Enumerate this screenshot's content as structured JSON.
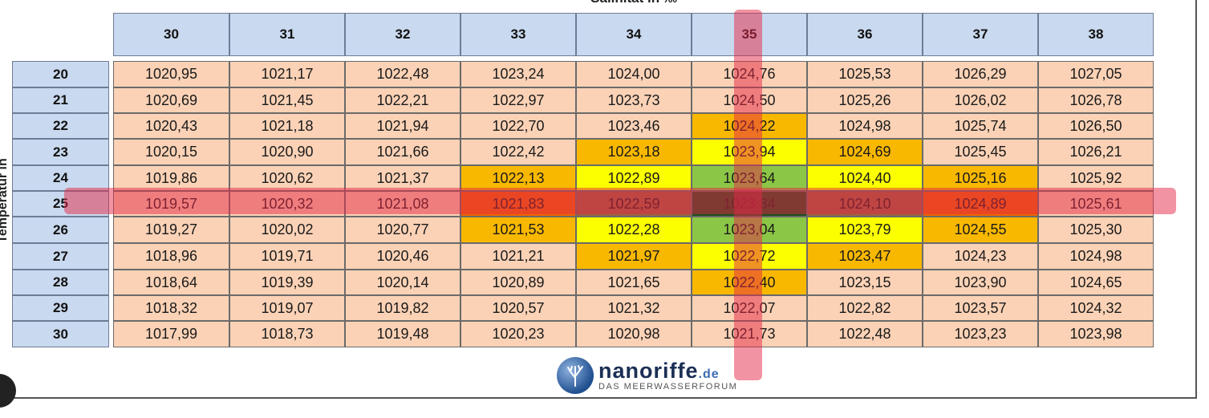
{
  "table": {
    "title": "Salinität in ‰",
    "y_label": "Temperatur in °C",
    "columns": [
      "30",
      "31",
      "32",
      "33",
      "34",
      "35",
      "36",
      "37",
      "38"
    ],
    "rows": [
      {
        "label": "20",
        "values": [
          "1020,95",
          "1021,17",
          "1022,48",
          "1023,24",
          "1024,00",
          "1024,76",
          "1025,53",
          "1026,29",
          "1027,05"
        ]
      },
      {
        "label": "21",
        "values": [
          "1020,69",
          "1021,45",
          "1022,21",
          "1022,97",
          "1023,73",
          "1024,50",
          "1025,26",
          "1026,02",
          "1026,78"
        ]
      },
      {
        "label": "22",
        "values": [
          "1020,43",
          "1021,18",
          "1021,94",
          "1022,70",
          "1023,46",
          "1024,22",
          "1024,98",
          "1025,74",
          "1026,50"
        ]
      },
      {
        "label": "23",
        "values": [
          "1020,15",
          "1020,90",
          "1021,66",
          "1022,42",
          "1023,18",
          "1023,94",
          "1024,69",
          "1025,45",
          "1026,21"
        ]
      },
      {
        "label": "24",
        "values": [
          "1019,86",
          "1020,62",
          "1021,37",
          "1022,13",
          "1022,89",
          "1023,64",
          "1024,40",
          "1025,16",
          "1025,92"
        ]
      },
      {
        "label": "25",
        "values": [
          "1019,57",
          "1020,32",
          "1021,08",
          "1021,83",
          "1022,59",
          "1023,34",
          "1024,10",
          "1024,89",
          "1025,61"
        ]
      },
      {
        "label": "26",
        "values": [
          "1019,27",
          "1020,02",
          "1020,77",
          "1021,53",
          "1022,28",
          "1023,04",
          "1023,79",
          "1024,55",
          "1025,30"
        ]
      },
      {
        "label": "27",
        "values": [
          "1018,96",
          "1019,71",
          "1020,46",
          "1021,21",
          "1021,97",
          "1022,72",
          "1023,47",
          "1024,23",
          "1024,98"
        ]
      },
      {
        "label": "28",
        "values": [
          "1018,64",
          "1019,39",
          "1020,14",
          "1020,89",
          "1021,65",
          "1022,40",
          "1023,15",
          "1023,90",
          "1024,65"
        ]
      },
      {
        "label": "29",
        "values": [
          "1018,32",
          "1019,07",
          "1019,82",
          "1020,57",
          "1021,32",
          "1022,07",
          "1022,82",
          "1023,57",
          "1024,32"
        ]
      },
      {
        "label": "30",
        "values": [
          "1017,99",
          "1018,73",
          "1019,48",
          "1020,23",
          "1020,98",
          "1021,73",
          "1022,48",
          "1023,23",
          "1023,98"
        ]
      }
    ],
    "colors": {
      "header_bg": "#c9d9ef",
      "cell_default": "#fbd2b6",
      "orange": "#f9b800",
      "yellow": "#fbff00",
      "light_green": "#8cc646",
      "dark_green": "#1e4d1e",
      "dark_orange": "#f06400",
      "brown": "#9b6340",
      "highlight_band": "#e42846"
    },
    "cell_colors": [
      [
        "",
        "",
        "",
        "",
        "",
        "",
        "",
        "",
        ""
      ],
      [
        "",
        "",
        "",
        "",
        "",
        "",
        "",
        "",
        ""
      ],
      [
        "",
        "",
        "",
        "",
        "",
        "orange",
        "",
        "",
        ""
      ],
      [
        "",
        "",
        "",
        "",
        "orange",
        "yellow",
        "orange",
        "",
        ""
      ],
      [
        "",
        "",
        "",
        "orange",
        "yellow",
        "light_green",
        "yellow",
        "orange",
        ""
      ],
      [
        "",
        "",
        "",
        "dark_orange",
        "brown",
        "dark_green",
        "brown",
        "dark_orange",
        ""
      ],
      [
        "",
        "",
        "",
        "orange",
        "yellow",
        "light_green",
        "yellow",
        "orange",
        ""
      ],
      [
        "",
        "",
        "",
        "",
        "orange",
        "yellow",
        "orange",
        "",
        ""
      ],
      [
        "",
        "",
        "",
        "",
        "",
        "orange",
        "",
        "",
        ""
      ],
      [
        "",
        "",
        "",
        "",
        "",
        "",
        "",
        "",
        ""
      ],
      [
        "",
        "",
        "",
        "",
        "",
        "",
        "",
        "",
        ""
      ]
    ]
  },
  "logo": {
    "name": "nanoriffe",
    "tld": ".de",
    "tagline": "DAS MEERWASSERFORUM"
  }
}
